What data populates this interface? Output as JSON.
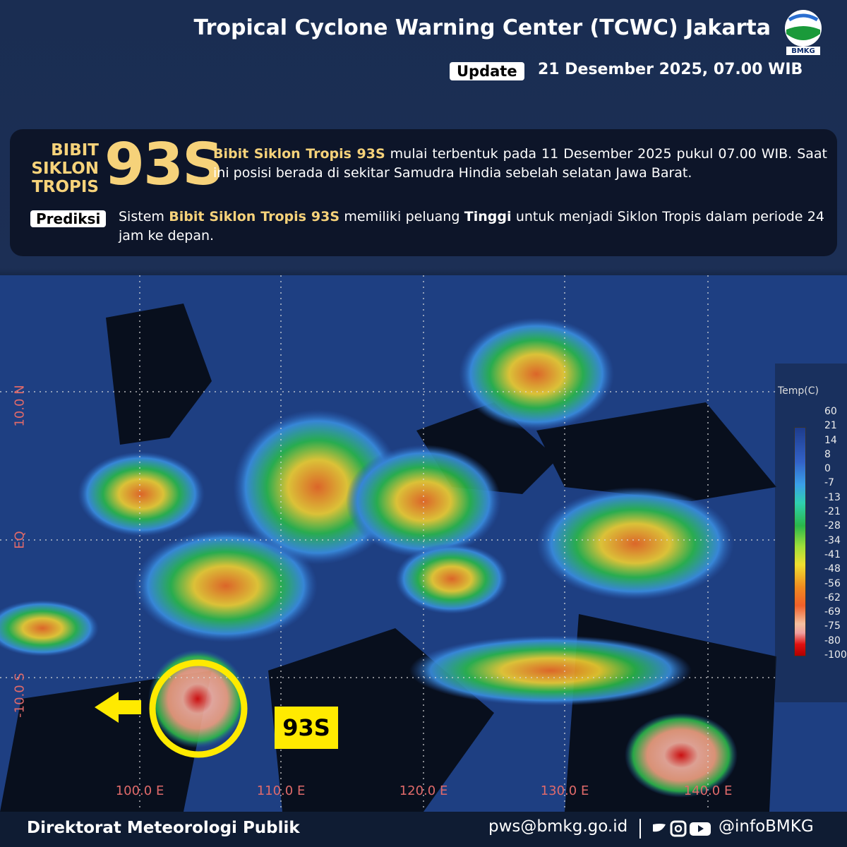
{
  "header": {
    "title": "Tropical Cyclone Warning Center (TCWC) Jakarta",
    "logo_text": "BMKG",
    "update_label": "Update",
    "date": "21 Desember 2025, 07.00 WIB"
  },
  "info": {
    "badge": [
      "BIBIT",
      "SIKLON",
      "TROPIS"
    ],
    "code": "93S",
    "description": [
      {
        "text": "Bibit Siklon Tropis 93S",
        "style": "y"
      },
      {
        "text": " mulai terbentuk pada 11 Desember 2025 pukul 07.00 WIB. Saat ini posisi berada di sekitar Samudra Hindia sebelah selatan Jawa Barat.",
        "style": "n"
      }
    ],
    "prediction_label": "Prediksi",
    "prediction": [
      {
        "text": "Sistem ",
        "style": "n"
      },
      {
        "text": "Bibit Siklon Tropis 93S",
        "style": "y"
      },
      {
        "text": "  memiliki peluang ",
        "style": "n"
      },
      {
        "text": "Tinggi",
        "style": "w"
      },
      {
        "text": " untuk menjadi Siklon Tropis dalam periode 24 jam ke depan.",
        "style": "n"
      }
    ]
  },
  "map": {
    "lat_labels": [
      "10.0 N",
      "EQ",
      "-10.0 S"
    ],
    "lon_labels": [
      "100.0 E",
      "110.0 E",
      "120.0 E",
      "130.0 E",
      "140.0 E"
    ],
    "colorbar_title": "Temp(C)",
    "colorbar_ticks": [
      60,
      21,
      14,
      8,
      0,
      -7,
      -13,
      -21,
      -28,
      -34,
      -41,
      -48,
      -56,
      -62,
      -69,
      -75,
      -80,
      -100
    ],
    "storm_label": "93S"
  },
  "footer": {
    "organization": "Direktorat Meteorologi Publik",
    "email": "pws@bmkg.go.id",
    "handle": "@infoBMKG"
  }
}
